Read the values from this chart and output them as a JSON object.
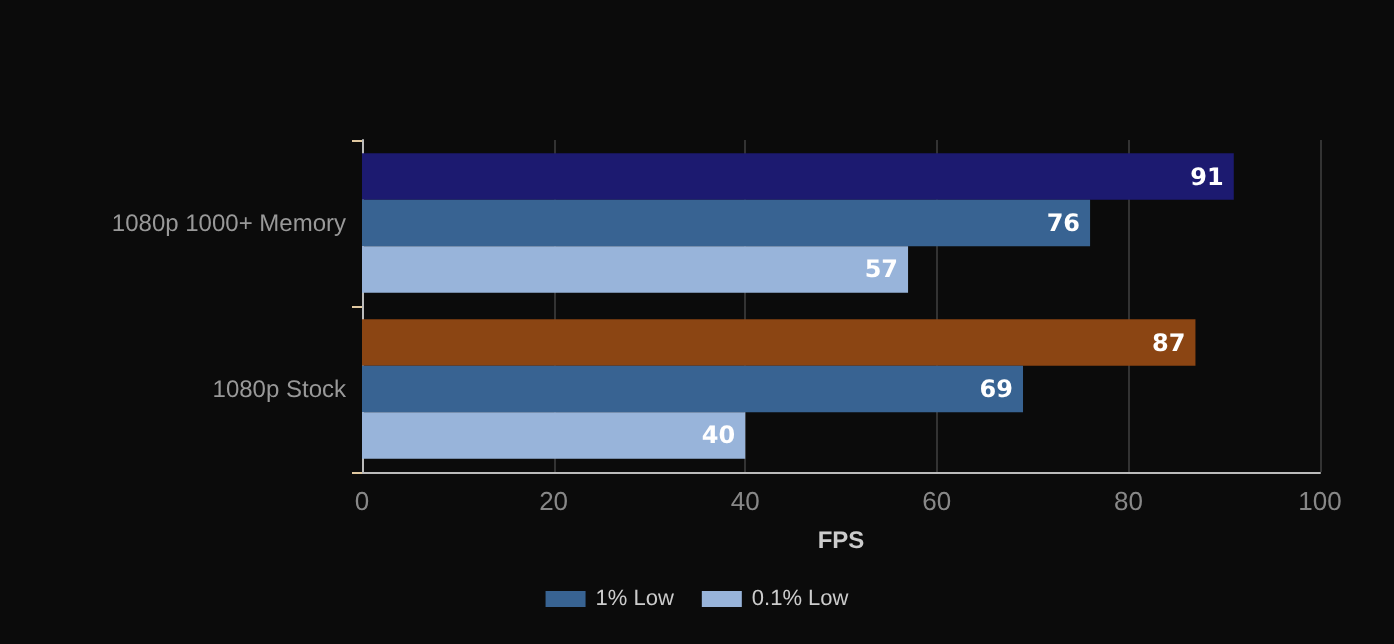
{
  "chart_data": {
    "type": "bar",
    "orientation": "horizontal",
    "xlabel": "FPS",
    "categories": [
      "1080p 1000+ Memory",
      "1080p Stock"
    ],
    "series": [
      {
        "colors": [
          "#1c1a70",
          "#8b4513"
        ],
        "values": [
          91,
          87
        ]
      },
      {
        "name": "1% Low",
        "color": "#386392",
        "values": [
          76,
          69
        ]
      },
      {
        "name": "0.1% Low",
        "color": "#98b4da",
        "values": [
          57,
          40
        ]
      }
    ],
    "xlim": [
      0,
      100
    ],
    "xticks": [
      0,
      20,
      40,
      60,
      80,
      100
    ],
    "grid": "x",
    "legend": "bottom",
    "data_labels": true
  }
}
